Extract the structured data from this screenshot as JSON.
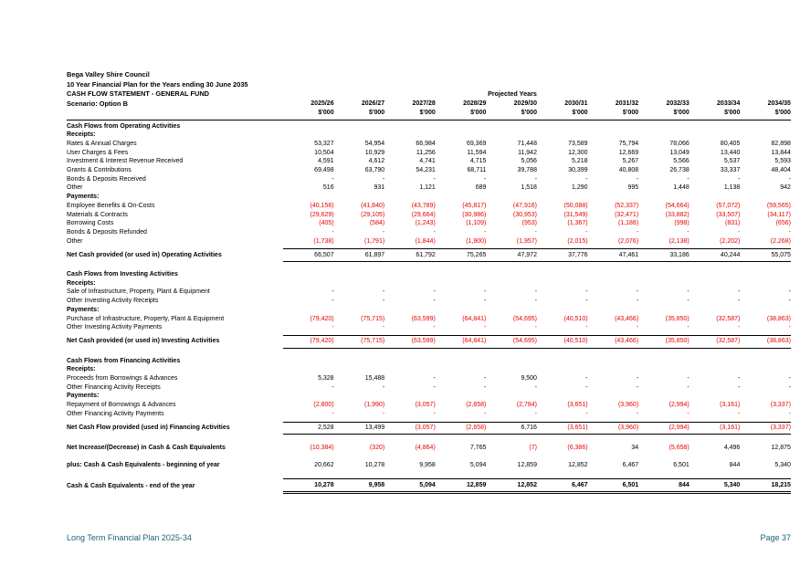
{
  "header": {
    "org": "Bega Valley Shire Council",
    "plan": "10 Year Financial Plan for the Years ending 30 June 2035",
    "statement": "CASH FLOW STATEMENT - GENERAL FUND",
    "scenario": "Scenario: Option B",
    "projected_years": "Projected Years",
    "years": [
      "2025/26",
      "2026/27",
      "2027/28",
      "2028/29",
      "2029/30",
      "2030/31",
      "2031/32",
      "2032/33",
      "2033/34",
      "2034/35"
    ],
    "unit": "$'000"
  },
  "table": {
    "rows": [
      {
        "type": "section",
        "label": "Cash Flows from Operating Activities"
      },
      {
        "type": "subhead",
        "label": "Receipts:"
      },
      {
        "type": "item",
        "label": "Rates & Annual Charges",
        "values": [
          "53,327",
          "54,954",
          "66,984",
          "69,369",
          "71,448",
          "73,589",
          "75,794",
          "78,066",
          "80,405",
          "82,898"
        ]
      },
      {
        "type": "item",
        "label": "User Charges & Fees",
        "values": [
          "10,504",
          "10,929",
          "11,256",
          "11,594",
          "11,942",
          "12,300",
          "12,669",
          "13,049",
          "13,440",
          "13,844"
        ]
      },
      {
        "type": "item",
        "label": "Investment & Interest Revenue Received",
        "values": [
          "4,591",
          "4,612",
          "4,741",
          "4,715",
          "5,056",
          "5,218",
          "5,267",
          "5,566",
          "5,537",
          "5,593"
        ]
      },
      {
        "type": "item",
        "label": "Grants & Contributions",
        "values": [
          "69,498",
          "63,790",
          "54,231",
          "68,711",
          "39,788",
          "30,399",
          "40,808",
          "26,738",
          "33,337",
          "48,404"
        ]
      },
      {
        "type": "item",
        "label": "Bonds & Deposits Received",
        "values": [
          "-",
          "-",
          "-",
          "-",
          "-",
          "-",
          "-",
          "-",
          "-",
          "-"
        ]
      },
      {
        "type": "item",
        "label": "Other",
        "values": [
          "516",
          "931",
          "1,121",
          "689",
          "1,518",
          "1,290",
          "995",
          "1,448",
          "1,138",
          "942"
        ]
      },
      {
        "type": "subhead",
        "label": "Payments:"
      },
      {
        "type": "item",
        "label": "Employee Benefits & On-Costs",
        "values": [
          "(40,156)",
          "(41,840)",
          "(43,789)",
          "(45,817)",
          "(47,916)",
          "(50,088)",
          "(52,337)",
          "(54,664)",
          "(57,072)",
          "(59,565)"
        ]
      },
      {
        "type": "item",
        "label": "Materials & Contracts",
        "values": [
          "(29,629)",
          "(29,105)",
          "(29,664)",
          "(30,986)",
          "(30,953)",
          "(31,549)",
          "(32,471)",
          "(33,882)",
          "(33,507)",
          "(34,117)"
        ]
      },
      {
        "type": "item",
        "label": "Borrowing Costs",
        "values": [
          "(405)",
          "(584)",
          "(1,243)",
          "(1,109)",
          "(953)",
          "(1,367)",
          "(1,188)",
          "(998)",
          "(831)",
          "(656)"
        ]
      },
      {
        "type": "item",
        "label": "Bonds & Deposits Refunded",
        "red": true,
        "values": [
          "-",
          "-",
          "-",
          "-",
          "-",
          "-",
          "-",
          "-",
          "-",
          "-"
        ]
      },
      {
        "type": "item",
        "label": "Other",
        "values": [
          "(1,738)",
          "(1,791)",
          "(1,844)",
          "(1,900)",
          "(1,957)",
          "(2,015)",
          "(2,076)",
          "(2,138)",
          "(2,202)",
          "(2,268)"
        ]
      },
      {
        "type": "net",
        "label": "Net Cash provided (or used in) Operating Activities",
        "values": [
          "66,507",
          "61,897",
          "61,792",
          "75,265",
          "47,972",
          "37,776",
          "47,461",
          "33,186",
          "40,244",
          "55,075"
        ]
      },
      {
        "type": "section",
        "label": "Cash Flows from Investing Activities"
      },
      {
        "type": "subhead",
        "label": "Receipts:"
      },
      {
        "type": "item",
        "label": "Sale of Infrastructure, Property, Plant & Equipment",
        "values": [
          "-",
          "-",
          "-",
          "-",
          "-",
          "-",
          "-",
          "-",
          "-",
          "-"
        ]
      },
      {
        "type": "item",
        "label": "Other Investing Activity Receipts",
        "values": [
          "-",
          "-",
          "-",
          "-",
          "-",
          "-",
          "-",
          "-",
          "-",
          "-"
        ]
      },
      {
        "type": "subhead",
        "label": "Payments:"
      },
      {
        "type": "item",
        "label": "Purchase of Infrastructure, Property, Plant & Equipment",
        "values": [
          "(79,420)",
          "(75,715)",
          "(63,599)",
          "(64,841)",
          "(54,695)",
          "(40,510)",
          "(43,466)",
          "(35,850)",
          "(32,587)",
          "(38,863)"
        ]
      },
      {
        "type": "item",
        "label": "Other Investing Activity Payments",
        "red": true,
        "values": [
          "-",
          "-",
          "-",
          "-",
          "-",
          "-",
          "-",
          "-",
          "-",
          "-"
        ]
      },
      {
        "type": "net",
        "label": "Net Cash provided (or used in) Investing Activities",
        "values": [
          "(79,420)",
          "(75,715)",
          "(63,599)",
          "(64,841)",
          "(54,695)",
          "(40,510)",
          "(43,466)",
          "(35,850)",
          "(32,587)",
          "(38,863)"
        ]
      },
      {
        "type": "section",
        "label": "Cash Flows from Financing Activities"
      },
      {
        "type": "subhead",
        "label": "Receipts:"
      },
      {
        "type": "item",
        "label": "Proceeds from Borrowings & Advances",
        "values": [
          "5,328",
          "15,488",
          "-",
          "-",
          "9,500",
          "-",
          "-",
          "-",
          "-",
          "-"
        ]
      },
      {
        "type": "item",
        "label": "Other Financing Activity Receipts",
        "values": [
          "-",
          "-",
          "-",
          "-",
          "-",
          "-",
          "-",
          "-",
          "-",
          "-"
        ]
      },
      {
        "type": "subhead",
        "label": "Payments:"
      },
      {
        "type": "item",
        "label": "Repayment of Borrowings & Advances",
        "values": [
          "(2,800)",
          "(1,990)",
          "(3,057)",
          "(2,658)",
          "(2,784)",
          "(3,651)",
          "(3,960)",
          "(2,994)",
          "(3,161)",
          "(3,337)"
        ]
      },
      {
        "type": "item",
        "label": "Other Financing Activity Payments",
        "red": true,
        "values": [
          "-",
          "-",
          "-",
          "-",
          "-",
          "-",
          "-",
          "-",
          "-",
          "-"
        ]
      },
      {
        "type": "net",
        "label": "Net Cash Flow provided (used in) Financing Activities",
        "values": [
          "2,528",
          "13,499",
          "(3,057)",
          "(2,658)",
          "6,716",
          "(3,651)",
          "(3,960)",
          "(2,994)",
          "(3,161)",
          "(3,337)"
        ]
      },
      {
        "type": "summary",
        "label": "Net Increase/(Decrease) in Cash & Cash Equivalents",
        "values": [
          "(10,384)",
          "(320)",
          "(4,864)",
          "7,765",
          "(7)",
          "(6,386)",
          "34",
          "(5,658)",
          "4,496",
          "12,875"
        ]
      },
      {
        "type": "summary",
        "label": "plus: Cash & Cash Equivalents - beginning of year",
        "values": [
          "20,662",
          "10,278",
          "9,958",
          "5,094",
          "12,859",
          "12,852",
          "6,467",
          "6,501",
          "844",
          "5,340"
        ]
      },
      {
        "type": "final",
        "label": "Cash & Cash Equivalents - end of the year",
        "values": [
          "10,278",
          "9,958",
          "5,094",
          "12,859",
          "12,852",
          "6,467",
          "6,501",
          "844",
          "5,340",
          "18,215"
        ]
      }
    ]
  },
  "footer": {
    "left": "Long Term Financial Plan 2025-34",
    "right": "Page 37"
  },
  "colors": {
    "negative": "#e60000",
    "footer_text": "#1e6175"
  }
}
